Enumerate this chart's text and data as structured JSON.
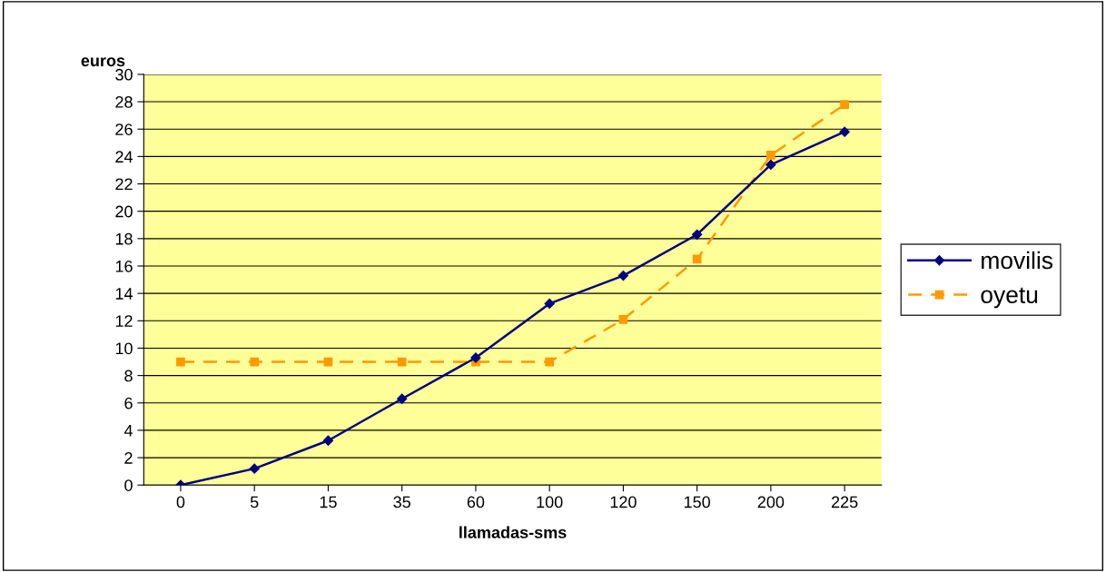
{
  "chart_data": {
    "type": "line",
    "xlabel": "llamadas-sms",
    "ylabel": "euros",
    "categories": [
      "0",
      "5",
      "15",
      "35",
      "60",
      "100",
      "120",
      "150",
      "200",
      "225"
    ],
    "series": [
      {
        "name": "movilis",
        "color": "#000080",
        "marker": "diamond",
        "line_style": "solid",
        "values": [
          0,
          1.2,
          3.25,
          6.3,
          9.3,
          13.25,
          15.3,
          18.3,
          23.4,
          25.8
        ]
      },
      {
        "name": "oyetu",
        "color": "#ff9900",
        "marker": "square",
        "line_style": "dashed",
        "values": [
          9,
          9,
          9,
          9,
          9,
          9,
          12.1,
          16.5,
          24.1,
          27.8
        ]
      }
    ],
    "ylim": [
      0,
      30
    ],
    "yticks": [
      0,
      2,
      4,
      6,
      8,
      10,
      12,
      14,
      16,
      18,
      20,
      22,
      24,
      26,
      28,
      30
    ],
    "grid": "y",
    "legend": "right"
  }
}
